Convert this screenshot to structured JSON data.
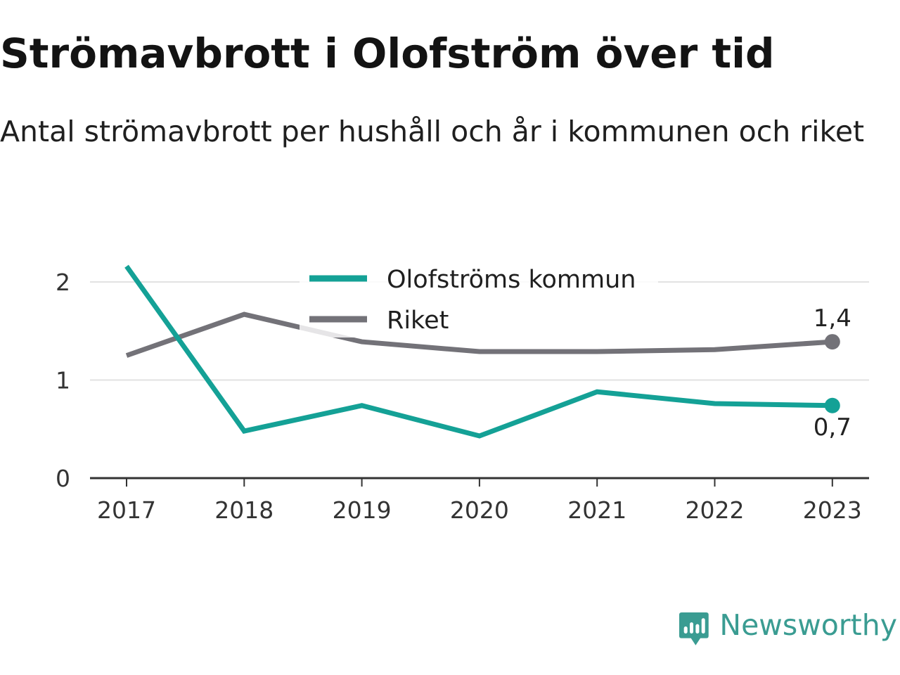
{
  "header": {
    "title": "Strömavbrott i Olofström över tid",
    "subtitle": "Antal strömavbrott per hushåll och år i kommunen och riket"
  },
  "brand": {
    "name": "Newsworthy",
    "icon": "newsworthy-logo-icon",
    "color": "#3a9c92"
  },
  "chart_data": {
    "type": "line",
    "title": "Strömavbrott i Olofström över tid",
    "subtitle": "Antal strömavbrott per hushåll och år i kommunen och riket",
    "categories": [
      "2017",
      "2018",
      "2019",
      "2020",
      "2021",
      "2022",
      "2023"
    ],
    "series": [
      {
        "name": "Olofströms kommun",
        "color": "#14a196",
        "values": [
          2.16,
          0.48,
          0.74,
          0.43,
          0.88,
          0.76,
          0.74
        ],
        "end_label": "0,7"
      },
      {
        "name": "Riket",
        "color": "#737278",
        "values": [
          1.25,
          1.67,
          1.39,
          1.29,
          1.29,
          1.31,
          1.39
        ],
        "end_label": "1,4"
      }
    ],
    "y_ticks": [
      "0",
      "1",
      "2"
    ],
    "ylim": [
      0,
      2.2
    ],
    "grid": true,
    "legend_position": "top-center"
  }
}
